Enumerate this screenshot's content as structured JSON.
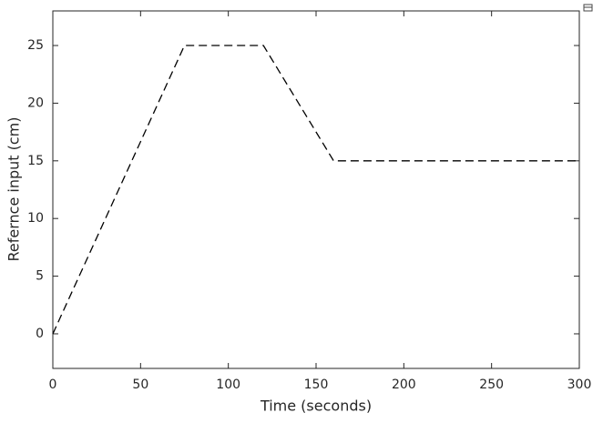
{
  "chart_data": {
    "type": "line",
    "xlabel": "Time (seconds)",
    "ylabel": "Refernce input (cm)",
    "x": [
      0,
      75,
      120,
      160,
      300
    ],
    "series": [
      {
        "color": "#000000",
        "values": [
          0,
          25,
          25,
          15,
          15
        ]
      }
    ],
    "xlim": [
      0,
      300
    ],
    "xticks": [
      0,
      50,
      100,
      150,
      200,
      250,
      300
    ],
    "ylim": [
      -3,
      28
    ],
    "yticks": [
      0,
      5,
      10,
      15,
      20,
      25
    ],
    "grid": false
  }
}
